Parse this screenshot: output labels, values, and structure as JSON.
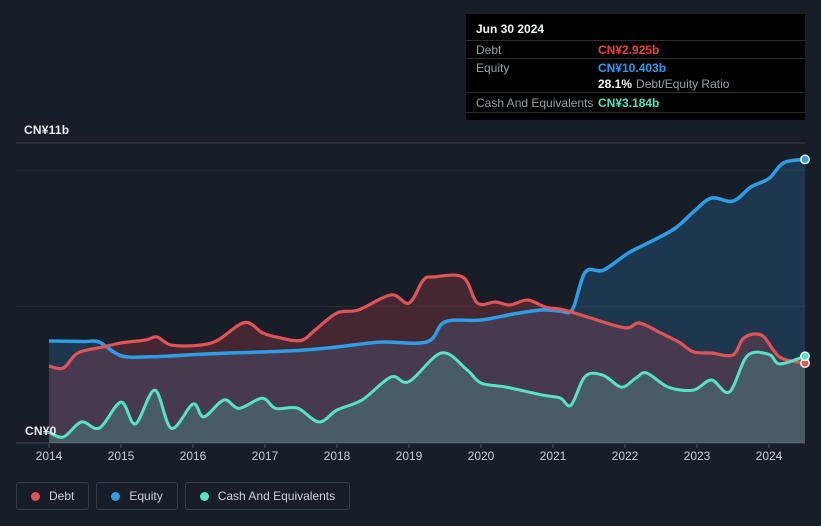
{
  "tooltip": {
    "date": "Jun 30 2024",
    "debt": {
      "label": "Debt",
      "value": "CN¥2.925b",
      "color": "#ee4037"
    },
    "equity": {
      "label": "Equity",
      "value": "CN¥10.403b",
      "color": "#2b9cf0"
    },
    "ratio": {
      "value": "28.1%",
      "label": "Debt/Equity Ratio"
    },
    "cash": {
      "label": "Cash And Equivalents",
      "value": "CN¥3.184b",
      "color": "#4fe3c3"
    }
  },
  "axis": {
    "y_max_label": "CN¥11b",
    "y_zero_label": "CN¥0",
    "years": [
      "2014",
      "2015",
      "2016",
      "2017",
      "2018",
      "2019",
      "2020",
      "2021",
      "2022",
      "2023",
      "2024"
    ]
  },
  "legend": [
    {
      "label": "Debt",
      "color": "#e45050"
    },
    {
      "label": "Equity",
      "color": "#2e9de6"
    },
    {
      "label": "Cash And Equivalents",
      "color": "#55e3c2"
    }
  ],
  "chart_data": {
    "type": "area",
    "currency": "CN¥",
    "unit": "billions",
    "x_range": [
      2014,
      2024.5
    ],
    "ylim": [
      0,
      11
    ],
    "gridlines_bn": [
      0,
      5,
      10,
      11
    ],
    "grid": "horizontal-only",
    "legend_position": "bottom-left",
    "series": [
      {
        "name": "Equity",
        "color": "#2e9de6",
        "fill": "rgba(45,157,230,0.20)",
        "line_width": 3.5,
        "points": [
          [
            2014,
            3.74
          ],
          [
            2014.25,
            3.73
          ],
          [
            2014.5,
            3.72
          ],
          [
            2014.7,
            3.7
          ],
          [
            2015,
            3.2
          ],
          [
            2015.4,
            3.16
          ],
          [
            2016,
            3.24
          ],
          [
            2016.5,
            3.3
          ],
          [
            2017,
            3.34
          ],
          [
            2017.5,
            3.4
          ],
          [
            2018,
            3.52
          ],
          [
            2018.6,
            3.7
          ],
          [
            2019.25,
            3.71
          ],
          [
            2019.5,
            4.44
          ],
          [
            2020,
            4.51
          ],
          [
            2020.45,
            4.73
          ],
          [
            2020.85,
            4.88
          ],
          [
            2021.1,
            4.84
          ],
          [
            2021.27,
            4.9
          ],
          [
            2021.45,
            6.27
          ],
          [
            2021.7,
            6.34
          ],
          [
            2022.05,
            6.97
          ],
          [
            2022.4,
            7.44
          ],
          [
            2022.7,
            7.88
          ],
          [
            2022.95,
            8.47
          ],
          [
            2023.2,
            8.98
          ],
          [
            2023.5,
            8.87
          ],
          [
            2023.75,
            9.39
          ],
          [
            2024,
            9.7
          ],
          [
            2024.2,
            10.27
          ],
          [
            2024.5,
            10.4
          ]
        ]
      },
      {
        "name": "Debt",
        "color": "#e05356",
        "fill": "rgba(226,74,80,0.22)",
        "line_width": 3.2,
        "points": [
          [
            2014,
            2.82
          ],
          [
            2014.2,
            2.75
          ],
          [
            2014.4,
            3.3
          ],
          [
            2014.75,
            3.52
          ],
          [
            2015,
            3.67
          ],
          [
            2015.35,
            3.78
          ],
          [
            2015.5,
            3.89
          ],
          [
            2015.7,
            3.59
          ],
          [
            2016.1,
            3.59
          ],
          [
            2016.35,
            3.78
          ],
          [
            2016.72,
            4.42
          ],
          [
            2016.97,
            4.03
          ],
          [
            2017.2,
            3.86
          ],
          [
            2017.5,
            3.76
          ],
          [
            2017.7,
            4.15
          ],
          [
            2018,
            4.77
          ],
          [
            2018.3,
            4.88
          ],
          [
            2018.75,
            5.43
          ],
          [
            2019,
            5.13
          ],
          [
            2019.2,
            5.98
          ],
          [
            2019.35,
            6.09
          ],
          [
            2019.75,
            6.08
          ],
          [
            2019.95,
            5.13
          ],
          [
            2020.2,
            5.17
          ],
          [
            2020.4,
            5.06
          ],
          [
            2020.65,
            5.24
          ],
          [
            2020.9,
            4.98
          ],
          [
            2021.15,
            4.88
          ],
          [
            2021.5,
            4.6
          ],
          [
            2022,
            4.22
          ],
          [
            2022.2,
            4.4
          ],
          [
            2022.5,
            4.03
          ],
          [
            2022.75,
            3.7
          ],
          [
            2022.95,
            3.34
          ],
          [
            2023.2,
            3.3
          ],
          [
            2023.5,
            3.23
          ],
          [
            2023.65,
            3.85
          ],
          [
            2023.9,
            3.95
          ],
          [
            2024.15,
            3.15
          ],
          [
            2024.5,
            2.93
          ]
        ]
      },
      {
        "name": "Cash And Equivalents",
        "color": "#55e3c2",
        "fill": "rgba(85,227,194,0.20)",
        "line_width": 3,
        "points": [
          [
            2014,
            0.4
          ],
          [
            2014.2,
            0.22
          ],
          [
            2014.45,
            0.77
          ],
          [
            2014.7,
            0.55
          ],
          [
            2015,
            1.5
          ],
          [
            2015.2,
            0.7
          ],
          [
            2015.47,
            1.94
          ],
          [
            2015.7,
            0.54
          ],
          [
            2016,
            1.43
          ],
          [
            2016.15,
            0.96
          ],
          [
            2016.43,
            1.58
          ],
          [
            2016.64,
            1.27
          ],
          [
            2016.96,
            1.64
          ],
          [
            2017.15,
            1.27
          ],
          [
            2017.45,
            1.28
          ],
          [
            2017.75,
            0.77
          ],
          [
            2018,
            1.21
          ],
          [
            2018.35,
            1.58
          ],
          [
            2018.75,
            2.42
          ],
          [
            2019,
            2.25
          ],
          [
            2019.45,
            3.3
          ],
          [
            2019.8,
            2.7
          ],
          [
            2020,
            2.2
          ],
          [
            2020.35,
            2.05
          ],
          [
            2020.85,
            1.76
          ],
          [
            2021.1,
            1.65
          ],
          [
            2021.25,
            1.39
          ],
          [
            2021.45,
            2.45
          ],
          [
            2021.7,
            2.48
          ],
          [
            2021.95,
            2.05
          ],
          [
            2022.15,
            2.38
          ],
          [
            2022.3,
            2.57
          ],
          [
            2022.6,
            2.05
          ],
          [
            2022.95,
            1.94
          ],
          [
            2023.2,
            2.31
          ],
          [
            2023.45,
            1.87
          ],
          [
            2023.7,
            3.2
          ],
          [
            2024,
            3.25
          ],
          [
            2024.15,
            2.9
          ],
          [
            2024.5,
            3.18
          ]
        ]
      }
    ]
  }
}
